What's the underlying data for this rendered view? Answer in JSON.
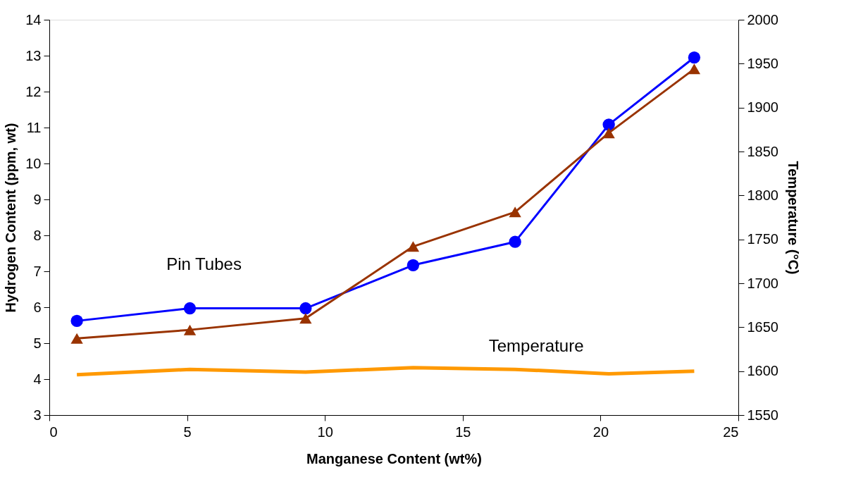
{
  "chart_data": {
    "type": "line",
    "xlabel": "Manganese Content (wt%)",
    "ylabel": "Hydrogen Content (ppm, wt)",
    "y2label": "Temperature (°C)",
    "x": [
      1.0,
      5.1,
      9.3,
      13.2,
      16.9,
      20.3,
      23.4
    ],
    "series": [
      {
        "name": "Pin Tubes",
        "color": "#0000ff",
        "marker": "circle",
        "values": [
          5.62,
          5.97,
          5.97,
          7.17,
          7.82,
          11.08,
          12.95
        ]
      },
      {
        "color": "#993300",
        "marker": "triangle",
        "values": [
          5.13,
          5.37,
          5.69,
          7.69,
          8.65,
          10.85,
          12.63
        ]
      },
      {
        "name": "Temperature",
        "color": "#ff9900",
        "marker": "none",
        "axis": "y2",
        "values": [
          1596,
          1602,
          1599,
          1604,
          1602,
          1597,
          1600
        ]
      }
    ],
    "xlim": [
      0,
      25
    ],
    "xticks": [
      0,
      5,
      10,
      15,
      20,
      25
    ],
    "ylim": [
      3,
      14
    ],
    "yticks": [
      3,
      4,
      5,
      6,
      7,
      8,
      9,
      10,
      11,
      12,
      13,
      14
    ],
    "y2lim": [
      1550,
      2000
    ],
    "y2ticks": [
      1550,
      1600,
      1650,
      1700,
      1750,
      1800,
      1850,
      1900,
      1950,
      2000
    ],
    "grid": false,
    "legend": false
  }
}
